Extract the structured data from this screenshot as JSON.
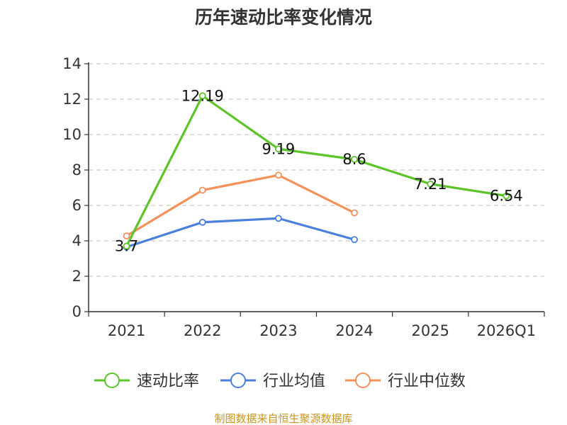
{
  "chart_data": {
    "type": "line",
    "title": "历年速动比率变化情况",
    "categories": [
      "2021",
      "2022",
      "2023",
      "2024",
      "2025",
      "2026Q1"
    ],
    "ylim": [
      0,
      14
    ],
    "yticks": [
      0,
      2,
      4,
      6,
      8,
      10,
      12,
      14
    ],
    "grid": true,
    "legend_position": "bottom",
    "series": [
      {
        "name": "速动比率",
        "color": "#5cc429",
        "values": [
          3.7,
          12.19,
          9.19,
          8.6,
          7.21,
          6.54
        ],
        "labels": [
          "3.7",
          "12.19",
          "9.19",
          "8.6",
          "7.21",
          "6.54"
        ]
      },
      {
        "name": "行业均值",
        "color": "#4a7fdb",
        "values": [
          3.65,
          5.05,
          5.27,
          4.07,
          null,
          null
        ]
      },
      {
        "name": "行业中位数",
        "color": "#f6905a",
        "values": [
          4.28,
          6.86,
          7.71,
          5.58,
          null,
          null
        ]
      }
    ],
    "source": "制图数据来自恒生聚源数据库"
  }
}
